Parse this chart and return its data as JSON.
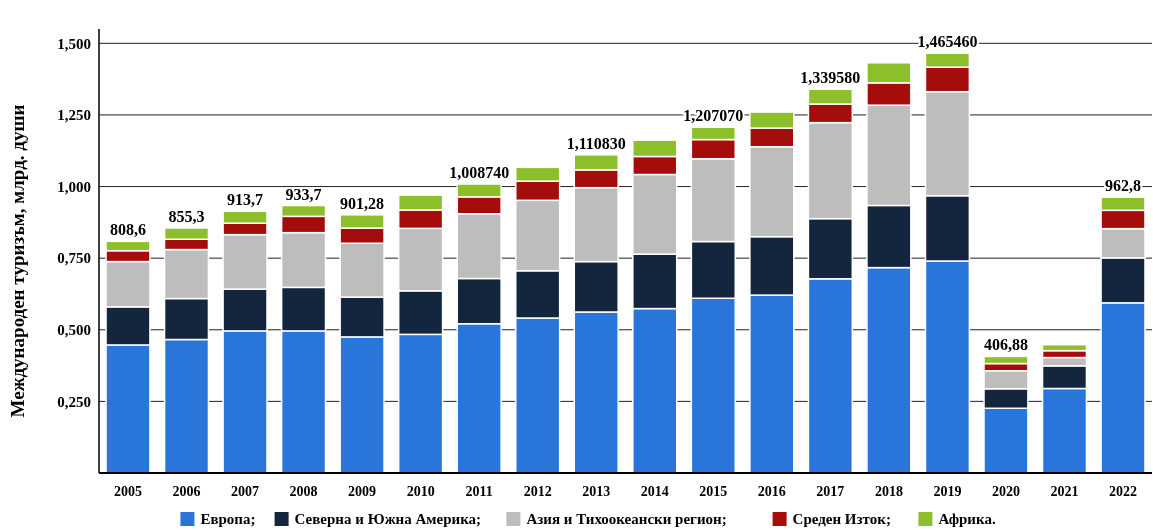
{
  "chart_data": {
    "type": "bar",
    "stacked": true,
    "ylabel": "Международен туризъм, млрд. души",
    "categories": [
      "2005",
      "2006",
      "2007",
      "2008",
      "2009",
      "2010",
      "2011",
      "2012",
      "2013",
      "2014",
      "2015",
      "2016",
      "2017",
      "2018",
      "2019",
      "2020",
      "2021",
      "2022"
    ],
    "series": [
      {
        "name": "Европа;",
        "color": "#2a75d9",
        "values": [
          0.447,
          0.466,
          0.496,
          0.496,
          0.475,
          0.484,
          0.521,
          0.541,
          0.562,
          0.574,
          0.61,
          0.621,
          0.678,
          0.717,
          0.74,
          0.226,
          0.295,
          0.594
        ]
      },
      {
        "name": "Северна и Южна Америка;",
        "color": "#13263d",
        "values": [
          0.133,
          0.143,
          0.146,
          0.152,
          0.139,
          0.152,
          0.158,
          0.165,
          0.176,
          0.19,
          0.198,
          0.204,
          0.21,
          0.217,
          0.228,
          0.068,
          0.079,
          0.157
        ]
      },
      {
        "name": "Азия и Тихоокеански регион;",
        "color": "#bdbdbd",
        "values": [
          0.158,
          0.171,
          0.19,
          0.191,
          0.188,
          0.218,
          0.226,
          0.246,
          0.258,
          0.278,
          0.289,
          0.314,
          0.335,
          0.35,
          0.363,
          0.063,
          0.029,
          0.102
        ]
      },
      {
        "name": "Среден Изток;",
        "color": "#a50d0d",
        "values": [
          0.038,
          0.036,
          0.04,
          0.057,
          0.053,
          0.064,
          0.059,
          0.067,
          0.062,
          0.063,
          0.067,
          0.065,
          0.065,
          0.078,
          0.086,
          0.025,
          0.024,
          0.064
        ]
      },
      {
        "name": "Африка.",
        "color": "#8cbf2a",
        "values": [
          0.0326,
          0.0393,
          0.0417,
          0.0377,
          0.04628,
          0.052,
          0.04474,
          0.048,
          0.05283,
          0.057,
          0.04307,
          0.056,
          0.05158,
          0.07,
          0.04846,
          0.02488,
          0.021,
          0.0458
        ]
      }
    ],
    "totals": [
      "808,6",
      "855,3",
      "913,7",
      "933,7",
      "901,28",
      null,
      "1,008740",
      null,
      "1,110830",
      null,
      "1,207070",
      null,
      "1,339580",
      null,
      "1,465460",
      "406,88",
      null,
      "962,8"
    ],
    "ylim": [
      0,
      1.55
    ],
    "yticks": [
      {
        "value": 0.25,
        "label": "0,250"
      },
      {
        "value": 0.5,
        "label": "0,500"
      },
      {
        "value": 0.75,
        "label": "0,750"
      },
      {
        "value": 1,
        "label": "1,000"
      },
      {
        "value": 1.25,
        "label": "1,250"
      },
      {
        "value": 1.5,
        "label": "1,500"
      }
    ],
    "grid": "y",
    "legend": "bottom"
  }
}
